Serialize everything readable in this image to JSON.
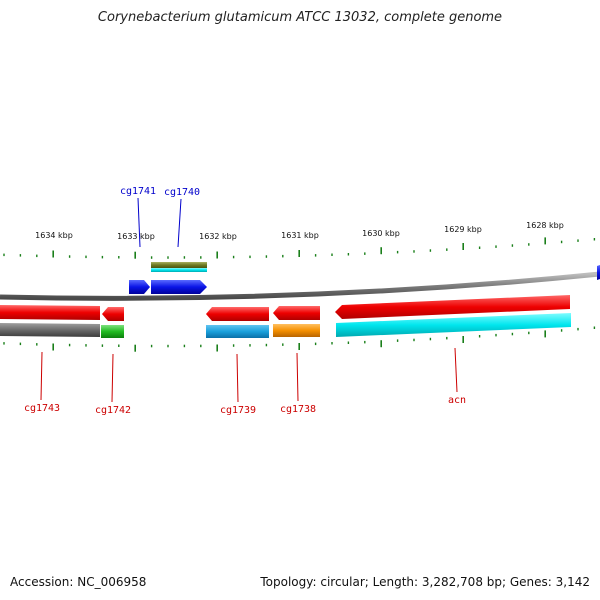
{
  "title": "Corynebacterium glutamicum ATCC 13032, complete genome",
  "accession": "Accession: NC_006958",
  "topology": "Topology: circular; Length: 3,282,708 bp; Genes: 3,142",
  "colors": {
    "tick": "#1a7f1a",
    "backbone": "#8a8a8a",
    "forward_cds": "#0a14e6",
    "reverse_cds": "#e60000",
    "forward_label": "#0000cc",
    "reverse_label": "#cc0000"
  },
  "scale_labels": [
    "1634 kbp",
    "1633 kbp",
    "1632 kbp",
    "1631 kbp",
    "1630 kbp",
    "1629 kbp",
    "1628 kbp"
  ],
  "genes": [
    {
      "label": "cg1741",
      "strand": "forward"
    },
    {
      "label": "cg1740",
      "strand": "forward"
    },
    {
      "label": "cg1743",
      "strand": "reverse"
    },
    {
      "label": "cg1742",
      "strand": "reverse"
    },
    {
      "label": "cg1739",
      "strand": "reverse"
    },
    {
      "label": "cg1738",
      "strand": "reverse"
    },
    {
      "label": "acn",
      "strand": "reverse"
    }
  ]
}
